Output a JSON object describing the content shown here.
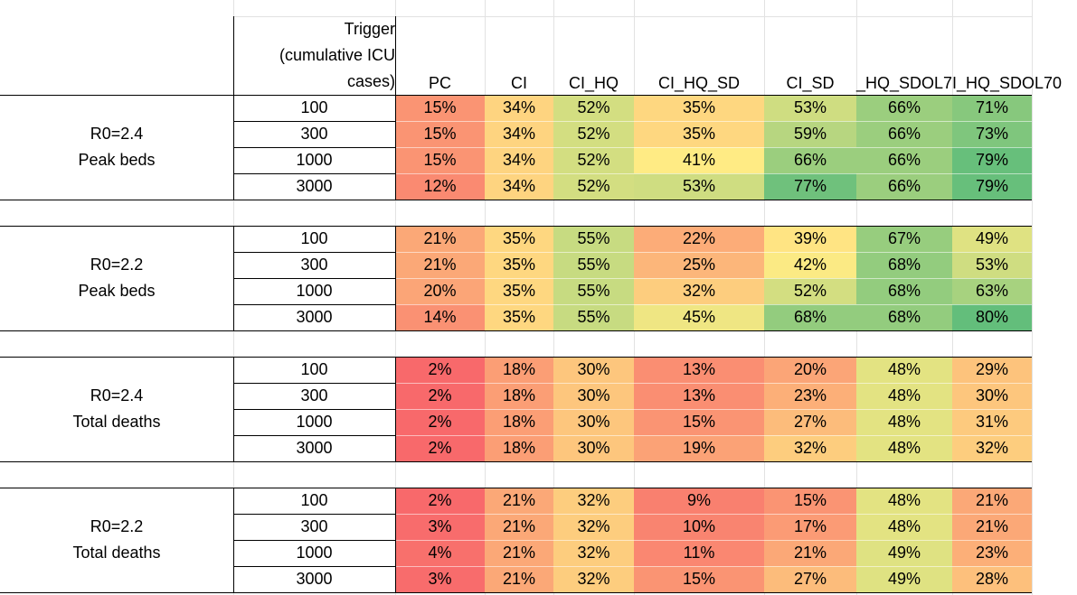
{
  "header": {
    "trigger_lines": [
      "Trigger",
      "(cumulative ICU",
      "cases)"
    ],
    "columns": [
      "PC",
      "CI",
      "CI_HQ",
      "CI_HQ_SD",
      "CI_SD",
      "_HQ_SDOL7",
      "I_HQ_SDOL70"
    ]
  },
  "groups": [
    {
      "label_lines": [
        "R0=2.4",
        "Peak beds"
      ],
      "rows": [
        {
          "trigger": "100",
          "values": [
            "15%",
            "34%",
            "52%",
            "35%",
            "53%",
            "66%",
            "71%"
          ]
        },
        {
          "trigger": "300",
          "values": [
            "15%",
            "34%",
            "52%",
            "35%",
            "59%",
            "66%",
            "73%"
          ]
        },
        {
          "trigger": "1000",
          "values": [
            "15%",
            "34%",
            "52%",
            "41%",
            "66%",
            "66%",
            "79%"
          ]
        },
        {
          "trigger": "3000",
          "values": [
            "12%",
            "34%",
            "52%",
            "53%",
            "77%",
            "66%",
            "79%"
          ]
        }
      ]
    },
    {
      "label_lines": [
        "R0=2.2",
        "Peak beds"
      ],
      "rows": [
        {
          "trigger": "100",
          "values": [
            "21%",
            "35%",
            "55%",
            "22%",
            "39%",
            "67%",
            "49%"
          ]
        },
        {
          "trigger": "300",
          "values": [
            "21%",
            "35%",
            "55%",
            "25%",
            "42%",
            "68%",
            "53%"
          ]
        },
        {
          "trigger": "1000",
          "values": [
            "20%",
            "35%",
            "55%",
            "32%",
            "52%",
            "68%",
            "63%"
          ]
        },
        {
          "trigger": "3000",
          "values": [
            "14%",
            "35%",
            "55%",
            "45%",
            "68%",
            "68%",
            "80%"
          ]
        }
      ]
    },
    {
      "label_lines": [
        "R0=2.4",
        "Total deaths"
      ],
      "rows": [
        {
          "trigger": "100",
          "values": [
            "2%",
            "18%",
            "30%",
            "13%",
            "20%",
            "48%",
            "29%"
          ]
        },
        {
          "trigger": "300",
          "values": [
            "2%",
            "18%",
            "30%",
            "13%",
            "23%",
            "48%",
            "30%"
          ]
        },
        {
          "trigger": "1000",
          "values": [
            "2%",
            "18%",
            "30%",
            "15%",
            "27%",
            "48%",
            "31%"
          ]
        },
        {
          "trigger": "3000",
          "values": [
            "2%",
            "18%",
            "30%",
            "19%",
            "32%",
            "48%",
            "32%"
          ]
        }
      ]
    },
    {
      "label_lines": [
        "R0=2.2",
        "Total deaths"
      ],
      "rows": [
        {
          "trigger": "100",
          "values": [
            "2%",
            "21%",
            "32%",
            "9%",
            "15%",
            "48%",
            "21%"
          ]
        },
        {
          "trigger": "300",
          "values": [
            "3%",
            "21%",
            "32%",
            "10%",
            "17%",
            "48%",
            "21%"
          ]
        },
        {
          "trigger": "1000",
          "values": [
            "4%",
            "21%",
            "32%",
            "11%",
            "21%",
            "49%",
            "23%"
          ]
        },
        {
          "trigger": "3000",
          "values": [
            "3%",
            "21%",
            "32%",
            "15%",
            "27%",
            "49%",
            "28%"
          ]
        }
      ]
    }
  ],
  "colors": {
    "grid": "#e2e2e2",
    "border": "#000000",
    "scale_low": "#f8696b",
    "scale_mid": "#ffeb84",
    "scale_high": "#63be7b",
    "scale_min_pct": 2,
    "scale_max_pct": 80
  }
}
